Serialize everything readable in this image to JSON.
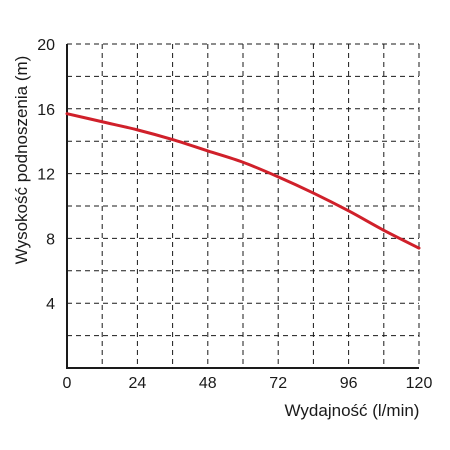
{
  "chart_data": {
    "type": "line",
    "title": "",
    "xlabel": "Wydajność (l/min)",
    "ylabel": "Wysokość podnoszenia (m)",
    "xlim": [
      0,
      120
    ],
    "ylim": [
      0,
      20
    ],
    "x_ticks": [
      0,
      24,
      48,
      72,
      96,
      120
    ],
    "y_ticks": [
      4,
      8,
      12,
      16,
      20
    ],
    "x_tick_labels": [
      "0",
      "24",
      "48",
      "72",
      "96",
      "120"
    ],
    "y_tick_labels": [
      "4",
      "8",
      "12",
      "16",
      "20"
    ],
    "grid": true,
    "series": [
      {
        "color": "#d0202a",
        "x": [
          0,
          12,
          24,
          36,
          48,
          60,
          72,
          84,
          96,
          108,
          120
        ],
        "y": [
          15.7,
          15.2,
          14.7,
          14.1,
          13.4,
          12.7,
          11.8,
          10.8,
          9.7,
          8.5,
          7.4
        ]
      }
    ]
  }
}
